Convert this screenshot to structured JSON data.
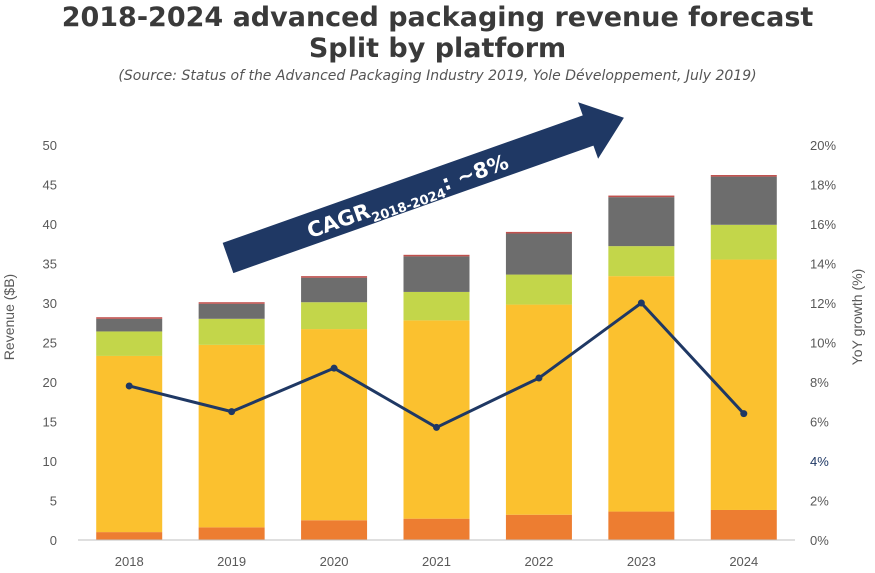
{
  "header": {
    "title_line1": "2018-2024 advanced packaging revenue forecast",
    "title_line2": "Split by platform",
    "source": "(Source: Status of the Advanced Packaging Industry 2019, Yole Développement, July 2019)"
  },
  "cagr": {
    "main": "CAGR",
    "sub": "2018-2024",
    "value": ": ~8%"
  },
  "colors": {
    "orange": "#ed7d31",
    "gold": "#fbc12f",
    "lime": "#c3d64a",
    "gray": "#6d6d6d",
    "top": "#c0504d",
    "line": "#1f3864",
    "arrow": "#1f3864"
  },
  "chart_data": {
    "type": "bar",
    "stacked": true,
    "categories": [
      "2018",
      "2019",
      "2020",
      "2021",
      "2022",
      "2023",
      "2024"
    ],
    "series": [
      {
        "values": [
          1.0,
          1.6,
          2.5,
          2.7,
          3.2,
          3.6,
          3.8
        ]
      },
      {
        "values": [
          22.3,
          23.1,
          24.2,
          25.1,
          26.6,
          29.8,
          31.7
        ]
      },
      {
        "values": [
          3.1,
          3.3,
          3.4,
          3.6,
          3.8,
          3.8,
          4.4
        ]
      },
      {
        "values": [
          1.6,
          1.9,
          3.1,
          4.5,
          5.2,
          6.2,
          6.1
        ]
      },
      {
        "values": [
          0.2,
          0.2,
          0.2,
          0.2,
          0.2,
          0.2,
          0.2
        ]
      }
    ],
    "line_series": {
      "axis": "right",
      "values": [
        7.8,
        6.5,
        8.7,
        5.7,
        8.2,
        12.0,
        6.4
      ]
    },
    "ylabel": "Revenue ($B)",
    "y2label": "YoY growth (%)",
    "ylim": [
      0,
      50
    ],
    "y2lim": [
      0,
      20
    ],
    "yticks": [
      "0",
      "5",
      "10",
      "15",
      "20",
      "25",
      "30",
      "35",
      "40",
      "45",
      "50"
    ],
    "y2ticks": [
      "0%",
      "2%",
      "4%",
      "6%",
      "8%",
      "10%",
      "12%",
      "14%",
      "16%",
      "18%",
      "20%"
    ],
    "grid": false
  }
}
